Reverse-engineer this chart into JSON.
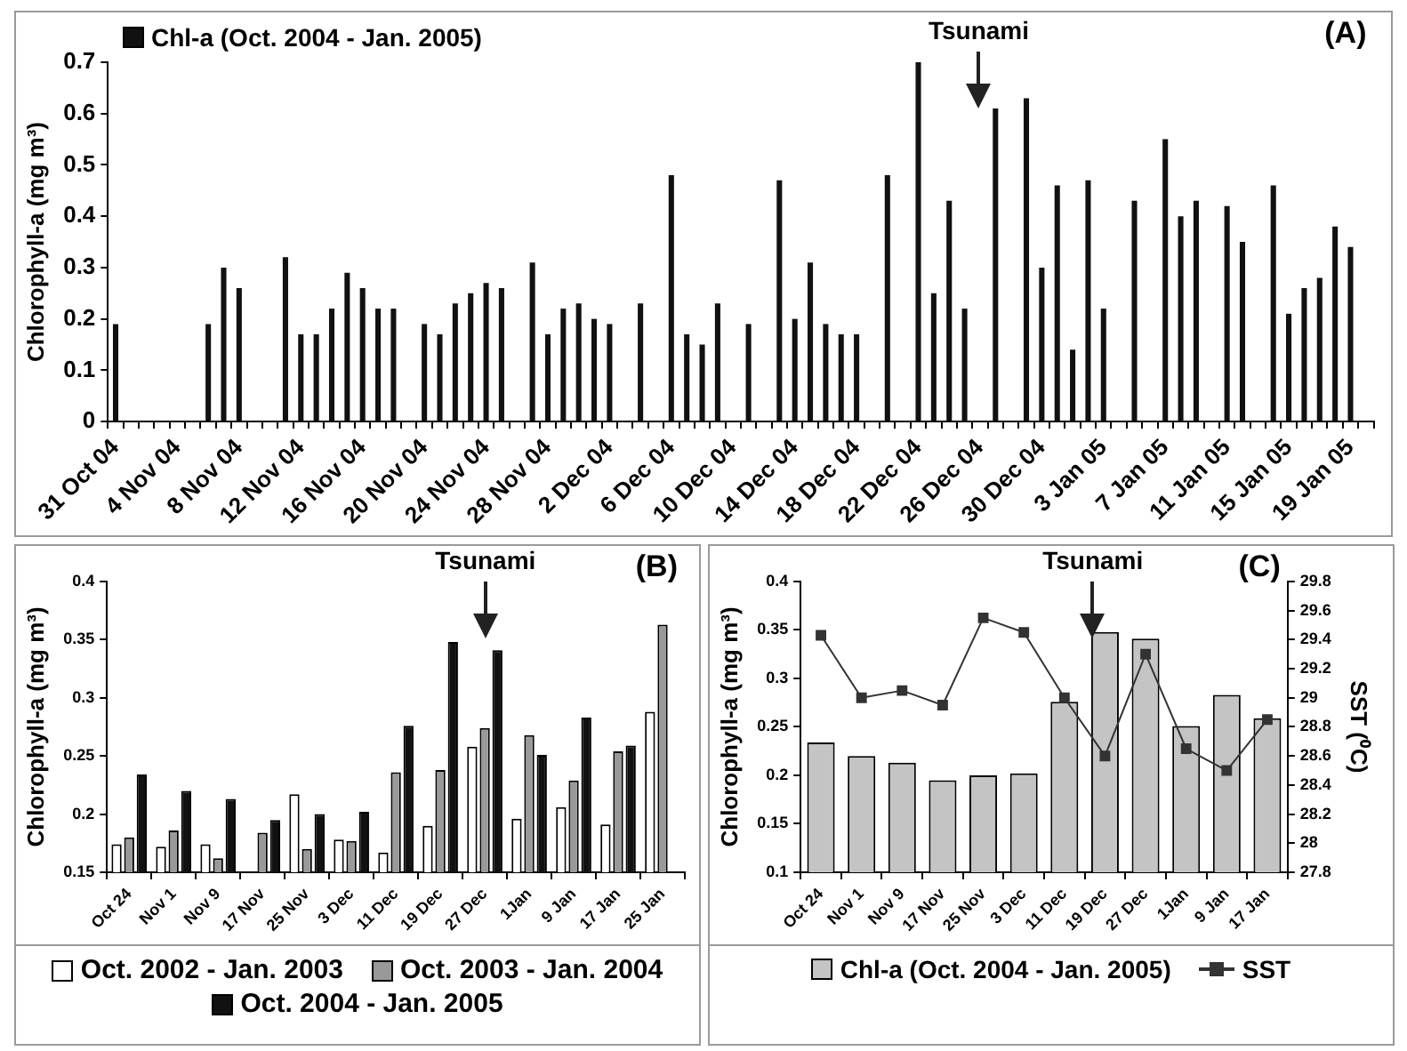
{
  "chart_data": [
    {
      "type": "bar",
      "ylabel": "Chlorophyll-a (mg m³)",
      "categories": [
        "31 Oct 04",
        null,
        null,
        null,
        "4 Nov 04",
        null,
        null,
        null,
        "8 Nov 04",
        null,
        null,
        null,
        "12 Nov 04",
        null,
        null,
        null,
        "16 Nov 04",
        null,
        null,
        null,
        "20 Nov 04",
        null,
        null,
        null,
        "24 Nov 04",
        null,
        null,
        null,
        "28 Nov 04",
        null,
        null,
        null,
        "2 Dec 04",
        null,
        null,
        null,
        "6 Dec 04",
        null,
        null,
        null,
        "10 Dec 04",
        null,
        null,
        null,
        "14 Dec 04",
        null,
        null,
        null,
        "18 Dec 04",
        null,
        null,
        null,
        "22 Dec 04",
        null,
        null,
        null,
        "26 Dec 04",
        null,
        null,
        null,
        "30 Dec 04",
        null,
        null,
        null,
        "3 Jan 05",
        null,
        null,
        null,
        "7 Jan 05",
        null,
        null,
        null,
        "11 Jan 05",
        null,
        null,
        null,
        "15 Jan 05",
        null,
        null,
        null,
        "19 Jan 05",
        null
      ],
      "series": [
        {
          "name": "Chl-a (Oct. 2004 - Jan. 2005)",
          "color": "#111111",
          "values": [
            0.19,
            null,
            null,
            null,
            null,
            null,
            0.19,
            0.3,
            0.26,
            null,
            null,
            0.32,
            0.17,
            0.17,
            0.22,
            0.29,
            0.26,
            0.22,
            0.22,
            null,
            0.19,
            0.17,
            0.23,
            0.25,
            0.27,
            0.26,
            null,
            0.31,
            0.17,
            0.22,
            0.23,
            0.2,
            0.19,
            null,
            0.23,
            null,
            0.48,
            0.17,
            0.15,
            0.23,
            null,
            0.19,
            null,
            0.47,
            0.2,
            0.31,
            0.19,
            0.17,
            0.17,
            null,
            0.48,
            null,
            0.7,
            0.25,
            0.43,
            0.22,
            null,
            0.61,
            null,
            0.63,
            0.3,
            0.46,
            0.14,
            0.47,
            0.22,
            null,
            0.43,
            null,
            0.55,
            0.4,
            0.43,
            null,
            0.42,
            0.35,
            null,
            0.46,
            0.21,
            0.26,
            0.28,
            0.38,
            0.34,
            null
          ]
        }
      ],
      "ylim": [
        0,
        0.7
      ],
      "yticks": [
        0,
        0.1,
        0.2,
        0.3,
        0.4,
        0.5,
        0.6,
        0.7
      ],
      "legend": "top left",
      "annotations": [
        "Tsunami",
        "(A)"
      ]
    },
    {
      "type": "bar",
      "ylabel": "Chlorophyll-a (mg m³)",
      "categories": [
        "Oct 24",
        "Nov 1",
        "Nov 9",
        "17 Nov",
        "25 Nov",
        "3 Dec",
        "11 Dec",
        "19 Dec",
        "27 Dec",
        "1Jan",
        "9 Jan",
        "17 Jan",
        "25 Jan"
      ],
      "series": [
        {
          "name": "Oct. 2002 - Jan. 2003",
          "color": "#ffffff",
          "values": [
            0.174,
            0.172,
            0.174,
            null,
            0.217,
            0.178,
            0.167,
            0.19,
            0.258,
            0.196,
            0.206,
            0.191,
            0.288
          ]
        },
        {
          "name": "Oct. 2003 - Jan. 2004",
          "color": "#999999",
          "values": [
            0.18,
            0.186,
            0.162,
            0.184,
            0.17,
            0.177,
            0.236,
            0.238,
            0.274,
            0.268,
            0.229,
            0.254,
            0.363
          ]
        },
        {
          "name": "Oct. 2004 - Jan. 2005",
          "color": "#111111",
          "values": [
            0.234,
            0.22,
            0.213,
            0.195,
            0.2,
            0.202,
            0.276,
            0.348,
            0.341,
            0.251,
            0.283,
            0.259,
            null
          ]
        }
      ],
      "ylim": [
        0.15,
        0.4
      ],
      "yticks": [
        0.15,
        0.2,
        0.25,
        0.3,
        0.35,
        0.4
      ],
      "legend": "bottom",
      "annotations": [
        "Tsunami",
        "(B)"
      ]
    },
    {
      "type": "bar",
      "ylabel": "Chlorophyll-a (mg m³)",
      "y2label": "SST (⁰C)",
      "categories": [
        "Oct 24",
        "Nov 1",
        "Nov 9",
        "17 Nov",
        "25 Nov",
        "3 Dec",
        "11 Dec",
        "19 Dec",
        "27 Dec",
        "1Jan",
        "9 Jan",
        "17 Jan"
      ],
      "series": [
        {
          "name": "Chl-a (Oct. 2004 - Jan. 2005)",
          "color": "#c4c4c4",
          "values": [
            0.234,
            0.22,
            0.213,
            0.195,
            0.2,
            0.202,
            0.276,
            0.348,
            0.341,
            0.251,
            0.283,
            0.259
          ]
        },
        {
          "name": "SST",
          "type": "line",
          "axis": "y2",
          "color": "#333333",
          "values": [
            29.43,
            29.0,
            29.05,
            28.95,
            29.55,
            29.45,
            29.0,
            28.6,
            29.3,
            28.65,
            28.5,
            28.85
          ]
        }
      ],
      "ylim": [
        0.1,
        0.4
      ],
      "yticks": [
        0.1,
        0.15,
        0.2,
        0.25,
        0.3,
        0.35,
        0.4
      ],
      "y2lim": [
        27.8,
        29.8
      ],
      "y2ticks": [
        27.8,
        28,
        28.2,
        28.4,
        28.6,
        28.8,
        29,
        29.2,
        29.4,
        29.6,
        29.8
      ],
      "legend": "bottom",
      "marker": "square",
      "annotations": [
        "Tsunami",
        "(C)"
      ]
    }
  ]
}
